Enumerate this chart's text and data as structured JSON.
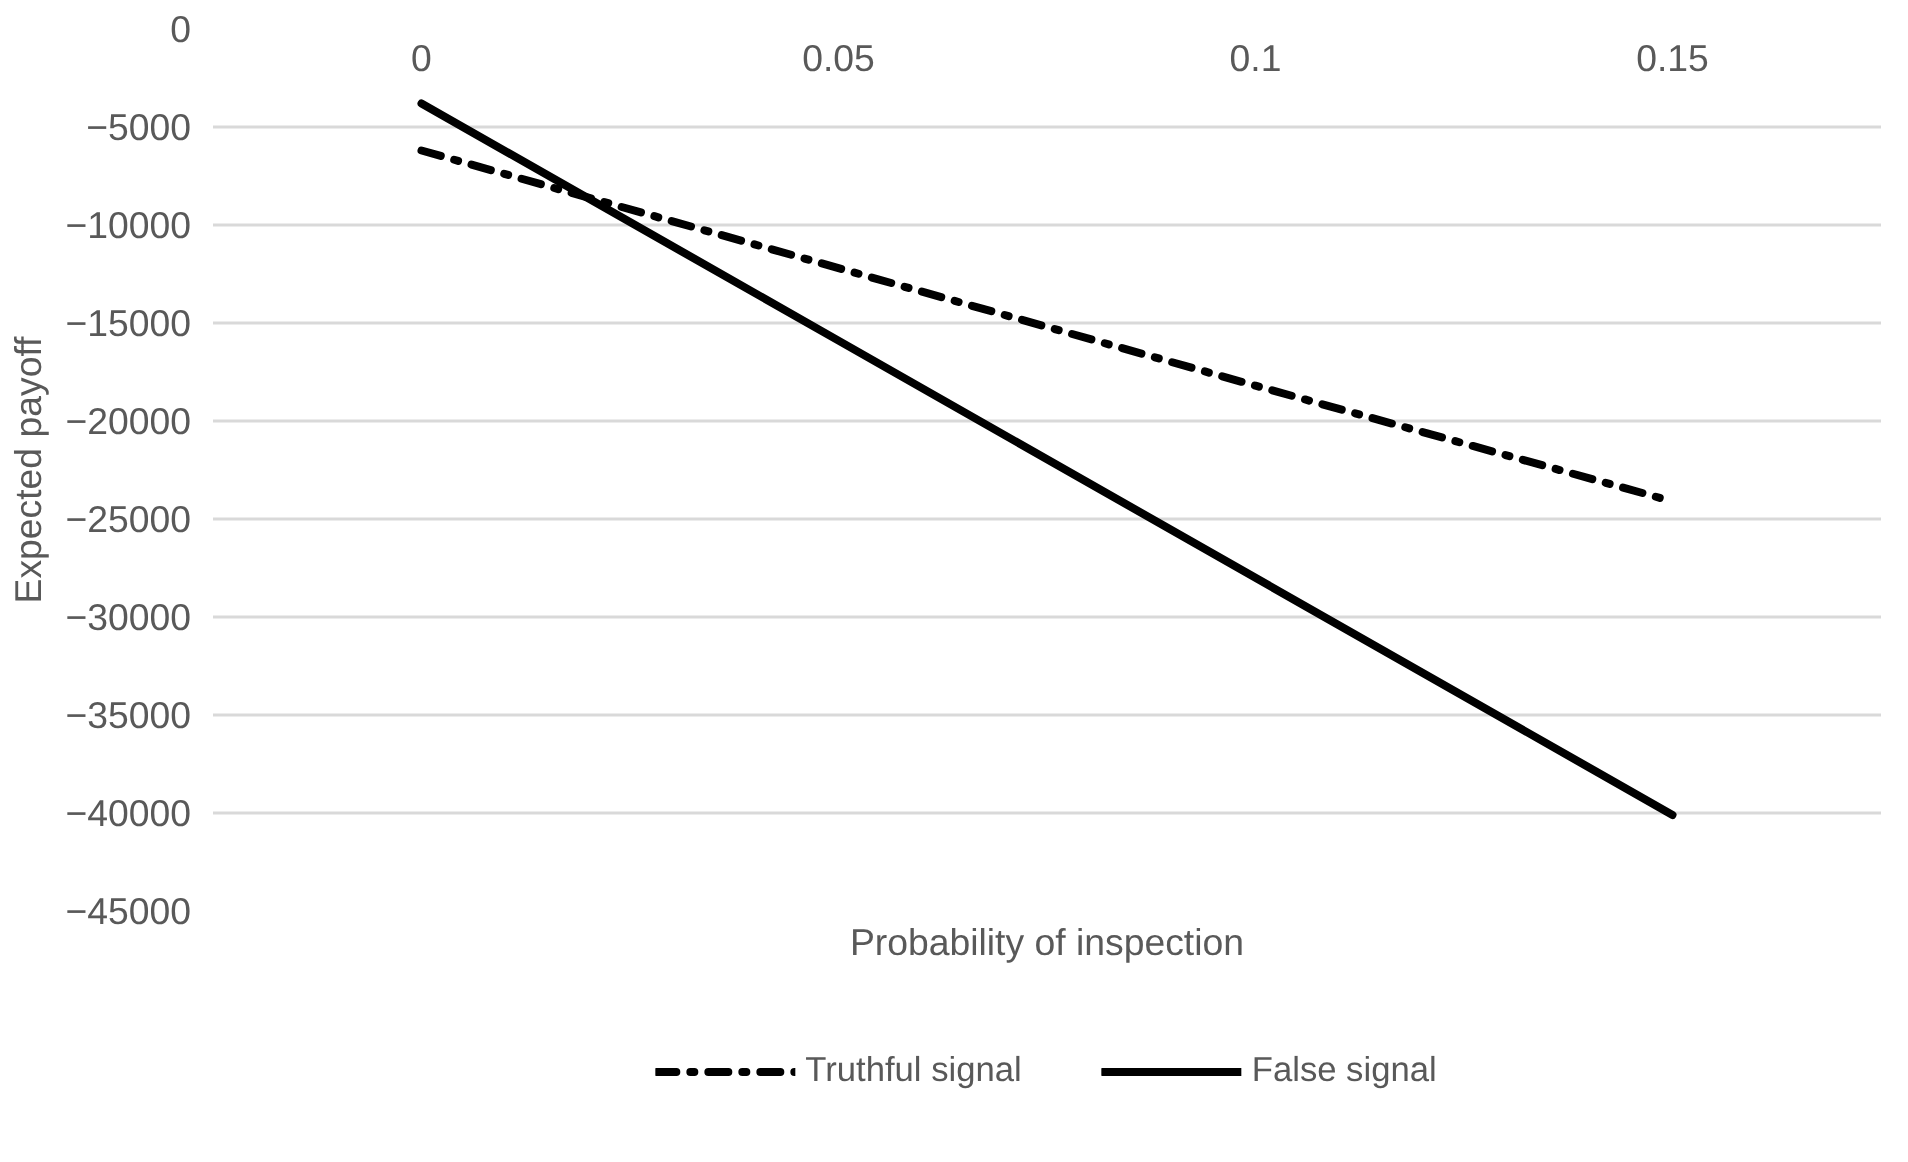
{
  "chart_data": {
    "type": "line",
    "xlabel": "Probability of inspection",
    "ylabel": "Expected payoff",
    "categories": [
      "0",
      "0.05",
      "0.1",
      "0.15"
    ],
    "series": [
      {
        "name": "Truthful signal",
        "color": "#000000",
        "line_style": "dashdot",
        "values": [
          -6200,
          -12200,
          -18200,
          -24100
        ]
      },
      {
        "name": "False signal",
        "color": "#000000",
        "line_style": "solid",
        "values": [
          -3800,
          -15900,
          -28000,
          -40100
        ]
      }
    ],
    "ylim": [
      -45000,
      0
    ],
    "yticks": [
      0,
      -5000,
      -10000,
      -15000,
      -20000,
      -25000,
      -30000,
      -35000,
      -40000,
      -45000
    ],
    "grid": "y",
    "legend": "bottom",
    "marker": "none"
  }
}
